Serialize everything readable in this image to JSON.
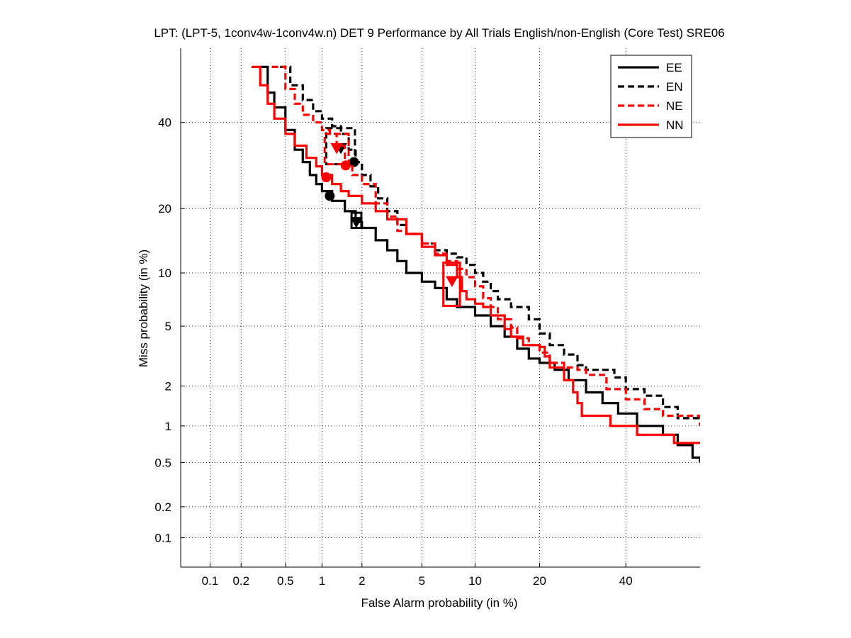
{
  "chart_data": {
    "type": "line",
    "title": "LPT: (LPT-5, 1conv4w-1conv4w.n) DET 9 Performance by All Trials English/non-English (Core Test) SRE06",
    "xlabel": "False Alarm probability (in %)",
    "ylabel": "Miss probability (in %)",
    "x_scale": "normal-deviate (probit)",
    "y_scale": "normal-deviate (probit)",
    "xlim": [
      0.05,
      60
    ],
    "ylim": [
      0.05,
      60
    ],
    "xticks": [
      0.1,
      0.2,
      0.5,
      1,
      2,
      5,
      10,
      20,
      40
    ],
    "xtick_labels": [
      "0.1",
      "0.2",
      "0.5",
      "1",
      "2",
      "5",
      "10",
      "20",
      "40"
    ],
    "yticks": [
      0.1,
      0.2,
      0.5,
      1,
      2,
      5,
      10,
      20,
      40
    ],
    "ytick_labels": [
      "0.1",
      "0.2",
      "0.5",
      "1",
      "2",
      "5",
      "10",
      "20",
      "40"
    ],
    "grid": true,
    "legend_position": "top-right",
    "series": [
      {
        "name": "EE",
        "color": "#000000",
        "dash": "solid",
        "points": [
          [
            0.3,
            55
          ],
          [
            0.35,
            48
          ],
          [
            0.4,
            44
          ],
          [
            0.5,
            38
          ],
          [
            0.6,
            33
          ],
          [
            0.7,
            30
          ],
          [
            0.8,
            27
          ],
          [
            0.9,
            25
          ],
          [
            1.0,
            23.5
          ],
          [
            1.2,
            21.5
          ],
          [
            1.5,
            19.5
          ],
          [
            1.8,
            17.5
          ],
          [
            2.0,
            16.5
          ],
          [
            2.5,
            14.5
          ],
          [
            3,
            13
          ],
          [
            3.5,
            11.5
          ],
          [
            4,
            10
          ],
          [
            5,
            9
          ],
          [
            6,
            8.3
          ],
          [
            7,
            7.2
          ],
          [
            8,
            6.5
          ],
          [
            10,
            5.8
          ],
          [
            12,
            5
          ],
          [
            14,
            4.3
          ],
          [
            16,
            3.6
          ],
          [
            18,
            3.1
          ],
          [
            20,
            2.9
          ],
          [
            23,
            2.6
          ],
          [
            26,
            2.2
          ],
          [
            30,
            1.8
          ],
          [
            34,
            1.5
          ],
          [
            38,
            1.25
          ],
          [
            43,
            1.0
          ],
          [
            50,
            0.85
          ],
          [
            54,
            0.7
          ],
          [
            58,
            0.55
          ],
          [
            60,
            0.5
          ]
        ],
        "min_dcf": {
          "x": 1.15,
          "y": 22.5
        },
        "act_dcf": {
          "x": 1.82,
          "y": 17.6
        },
        "act_box": {
          "x": [
            1.68,
            1.98
          ],
          "y": [
            16.5,
            19.2
          ]
        }
      },
      {
        "name": "EN",
        "color": "#000000",
        "dash": "dashed",
        "points": [
          [
            0.45,
            55
          ],
          [
            0.55,
            50
          ],
          [
            0.7,
            46
          ],
          [
            0.85,
            43
          ],
          [
            1.0,
            41
          ],
          [
            1.2,
            39
          ],
          [
            1.4,
            37
          ],
          [
            1.6,
            33
          ],
          [
            1.8,
            30
          ],
          [
            2.0,
            27
          ],
          [
            2.3,
            24.5
          ],
          [
            2.6,
            22
          ],
          [
            3,
            19.5
          ],
          [
            3.5,
            17
          ],
          [
            4,
            15.5
          ],
          [
            5,
            14
          ],
          [
            6,
            13
          ],
          [
            7,
            12.5
          ],
          [
            8,
            12
          ],
          [
            9,
            11
          ],
          [
            10,
            10
          ],
          [
            11,
            9
          ],
          [
            12,
            8
          ],
          [
            13,
            7.2
          ],
          [
            15,
            6.5
          ],
          [
            18,
            5.5
          ],
          [
            20,
            4.5
          ],
          [
            22,
            3.8
          ],
          [
            25,
            3.3
          ],
          [
            28,
            2.8
          ],
          [
            30,
            2.6
          ],
          [
            35,
            2.6
          ],
          [
            37,
            2.3
          ],
          [
            40,
            1.9
          ],
          [
            45,
            1.7
          ],
          [
            50,
            1.4
          ],
          [
            54,
            1.15
          ],
          [
            60,
            1.1
          ]
        ],
        "min_dcf": {
          "x": 1.75,
          "y": 30.0
        },
        "act_dcf": {
          "x": 1.4,
          "y": 33.5
        },
        "act_box": {
          "x": [
            1.08,
            1.78
          ],
          "y": [
            29.5,
            38.5
          ]
        }
      },
      {
        "name": "NE",
        "color": "#ff0000",
        "dash": "dashed",
        "points": [
          [
            0.38,
            55
          ],
          [
            0.5,
            49
          ],
          [
            0.6,
            45
          ],
          [
            0.7,
            42
          ],
          [
            0.85,
            40
          ],
          [
            1.0,
            38
          ],
          [
            1.15,
            37
          ],
          [
            1.3,
            34
          ],
          [
            1.5,
            29
          ],
          [
            1.7,
            27
          ],
          [
            2.0,
            25
          ],
          [
            2.5,
            21
          ],
          [
            3,
            18.5
          ],
          [
            3.5,
            16
          ],
          [
            4,
            15.5
          ],
          [
            5,
            14
          ],
          [
            6,
            12.5
          ],
          [
            7,
            11.5
          ],
          [
            8,
            10.5
          ],
          [
            9,
            9.5
          ],
          [
            10,
            8.5
          ],
          [
            11,
            7.3
          ],
          [
            12,
            6.5
          ],
          [
            13,
            5.5
          ],
          [
            15,
            4.9
          ],
          [
            16,
            4.2
          ],
          [
            18,
            3.8
          ],
          [
            20,
            3.4
          ],
          [
            22,
            2.9
          ],
          [
            25,
            2.7
          ],
          [
            28,
            2.6
          ],
          [
            30,
            2.4
          ],
          [
            35,
            1.9
          ],
          [
            40,
            1.6
          ],
          [
            45,
            1.35
          ],
          [
            50,
            1.2
          ],
          [
            60,
            1.0
          ]
        ],
        "min_dcf": {
          "x": 1.52,
          "y": 29.2
        },
        "act_dcf": {
          "x": 1.3,
          "y": 33.5
        },
        "act_box": {
          "x": [
            1.05,
            1.6
          ],
          "y": [
            29.5,
            37
          ]
        }
      },
      {
        "name": "NN",
        "color": "#ff0000",
        "dash": "solid",
        "points": [
          [
            0.25,
            55
          ],
          [
            0.3,
            50
          ],
          [
            0.35,
            45
          ],
          [
            0.4,
            41
          ],
          [
            0.5,
            37
          ],
          [
            0.6,
            34
          ],
          [
            0.75,
            31
          ],
          [
            0.9,
            29
          ],
          [
            1.0,
            27
          ],
          [
            1.2,
            25
          ],
          [
            1.4,
            23.5
          ],
          [
            1.6,
            22.5
          ],
          [
            2.0,
            21
          ],
          [
            2.5,
            19.5
          ],
          [
            3,
            18
          ],
          [
            4,
            15.5
          ],
          [
            5,
            13.5
          ],
          [
            6,
            12.3
          ],
          [
            7,
            11
          ],
          [
            8,
            9.5
          ],
          [
            8.5,
            8
          ],
          [
            9,
            7.2
          ],
          [
            10,
            6.8
          ],
          [
            11,
            6.5
          ],
          [
            12,
            5.8
          ],
          [
            14,
            4.8
          ],
          [
            15,
            4.3
          ],
          [
            17,
            3.8
          ],
          [
            20,
            3.7
          ],
          [
            21,
            3.2
          ],
          [
            22,
            2.7
          ],
          [
            25,
            2.2
          ],
          [
            27,
            1.8
          ],
          [
            28,
            1.5
          ],
          [
            29,
            1.2
          ],
          [
            35,
            1.2
          ],
          [
            36,
            1.0
          ],
          [
            42,
            1.0
          ],
          [
            43,
            0.85
          ],
          [
            52,
            0.85
          ],
          [
            53,
            0.73
          ],
          [
            60,
            0.73
          ]
        ],
        "min_dcf": {
          "x": 1.08,
          "y": 26.5
        },
        "act_dcf": {
          "x": 7.5,
          "y": 9.1
        },
        "act_box": {
          "x": [
            6.7,
            8.3
          ],
          "y": [
            6.6,
            11.3
          ]
        }
      }
    ]
  }
}
